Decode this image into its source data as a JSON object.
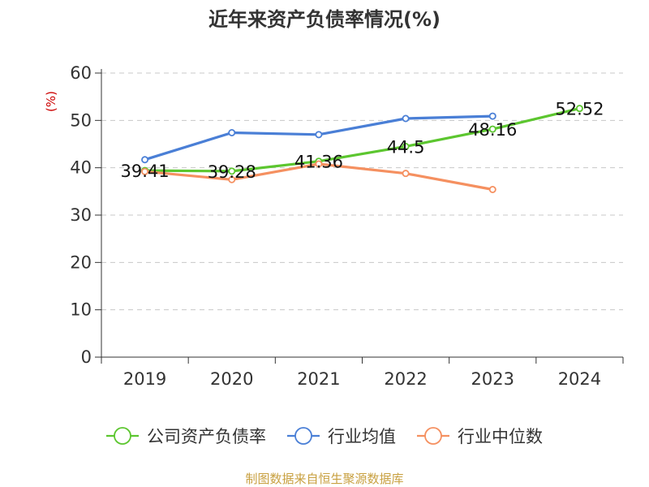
{
  "chart_data": {
    "type": "line",
    "title": "近年来资产负债率情况(%)",
    "ylabel": "(%)",
    "xlabel": "",
    "categories": [
      "2019",
      "2020",
      "2021",
      "2022",
      "2023",
      "2024"
    ],
    "ylim": [
      0,
      60
    ],
    "yticks": [
      0,
      10,
      20,
      30,
      40,
      50,
      60
    ],
    "grid": true,
    "legend_position": "bottom",
    "series": [
      {
        "name": "公司资产负债率",
        "color": "#5cc62f",
        "values": [
          39.41,
          39.28,
          41.36,
          44.5,
          48.16,
          52.52
        ],
        "labels": [
          "39.41",
          "39.28",
          "41.36",
          "44.5",
          "48.16",
          "52.52"
        ]
      },
      {
        "name": "行业均值",
        "color": "#4a7fd6",
        "values": [
          41.7,
          47.4,
          47.0,
          50.4,
          50.9,
          null
        ]
      },
      {
        "name": "行业中位数",
        "color": "#f59060",
        "values": [
          39.2,
          37.5,
          40.8,
          38.8,
          35.4,
          null
        ]
      }
    ],
    "source": "制图数据来自恒生聚源数据库"
  }
}
